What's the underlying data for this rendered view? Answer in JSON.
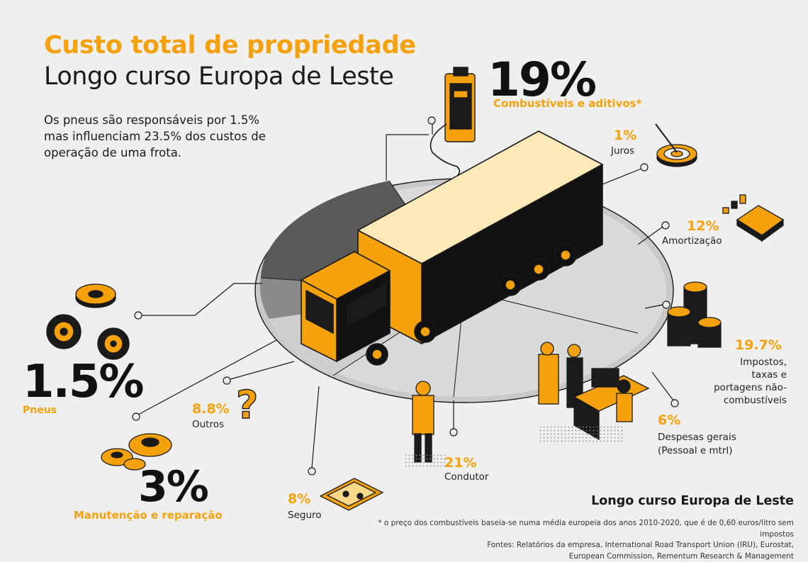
{
  "header": {
    "title": "Custo total de propriedade",
    "subtitle": "Longo curso Europa de Leste",
    "intro": "Os pneus são responsáveis por 1.5% mas influenciam 23.5% dos custos de operação de uma frota."
  },
  "segments": {
    "fuel": {
      "pct": "19%",
      "label": "Combustíveis e aditivos*"
    },
    "interest": {
      "pct": "1%",
      "label": "Juros"
    },
    "depreciation": {
      "pct": "12%",
      "label": "Amortização"
    },
    "taxes": {
      "pct": "19.7%",
      "label_l1": "Impostos,",
      "label_l2": "taxas e",
      "label_l3": "portagens não-",
      "label_l4": "combustíveis"
    },
    "overhead": {
      "pct": "6%",
      "label_l1": "Despesas gerais",
      "label_l2": "(Pessoal e mtrl)"
    },
    "driver": {
      "pct": "21%",
      "label": "Condutor"
    },
    "insurance": {
      "pct": "8%",
      "label": "Seguro"
    },
    "other": {
      "pct": "8.8%",
      "label": "Outros"
    },
    "maintenance": {
      "pct": "3%",
      "label": "Manutenção e reparação"
    },
    "tyres": {
      "pct": "1.5%",
      "label": "Pneus"
    }
  },
  "footer": {
    "title": "Longo curso Europa de Leste",
    "note": "* o preço dos combustíveis baseia-se numa média europeia dos anos 2010-2020, que é de 0,60 euros/litro sem impostos",
    "sources_l1": "Fontes: Relatórios da empresa, International Road Transport Union (IRU), Eurostat,",
    "sources_l2": "European Commission, Rementum Research & Management"
  },
  "colors": {
    "accent": "#f5a10b",
    "dark": "#111111",
    "background": "#efefef",
    "disc": "#d6d6d6",
    "disc_dark": "#5a5a5a"
  }
}
